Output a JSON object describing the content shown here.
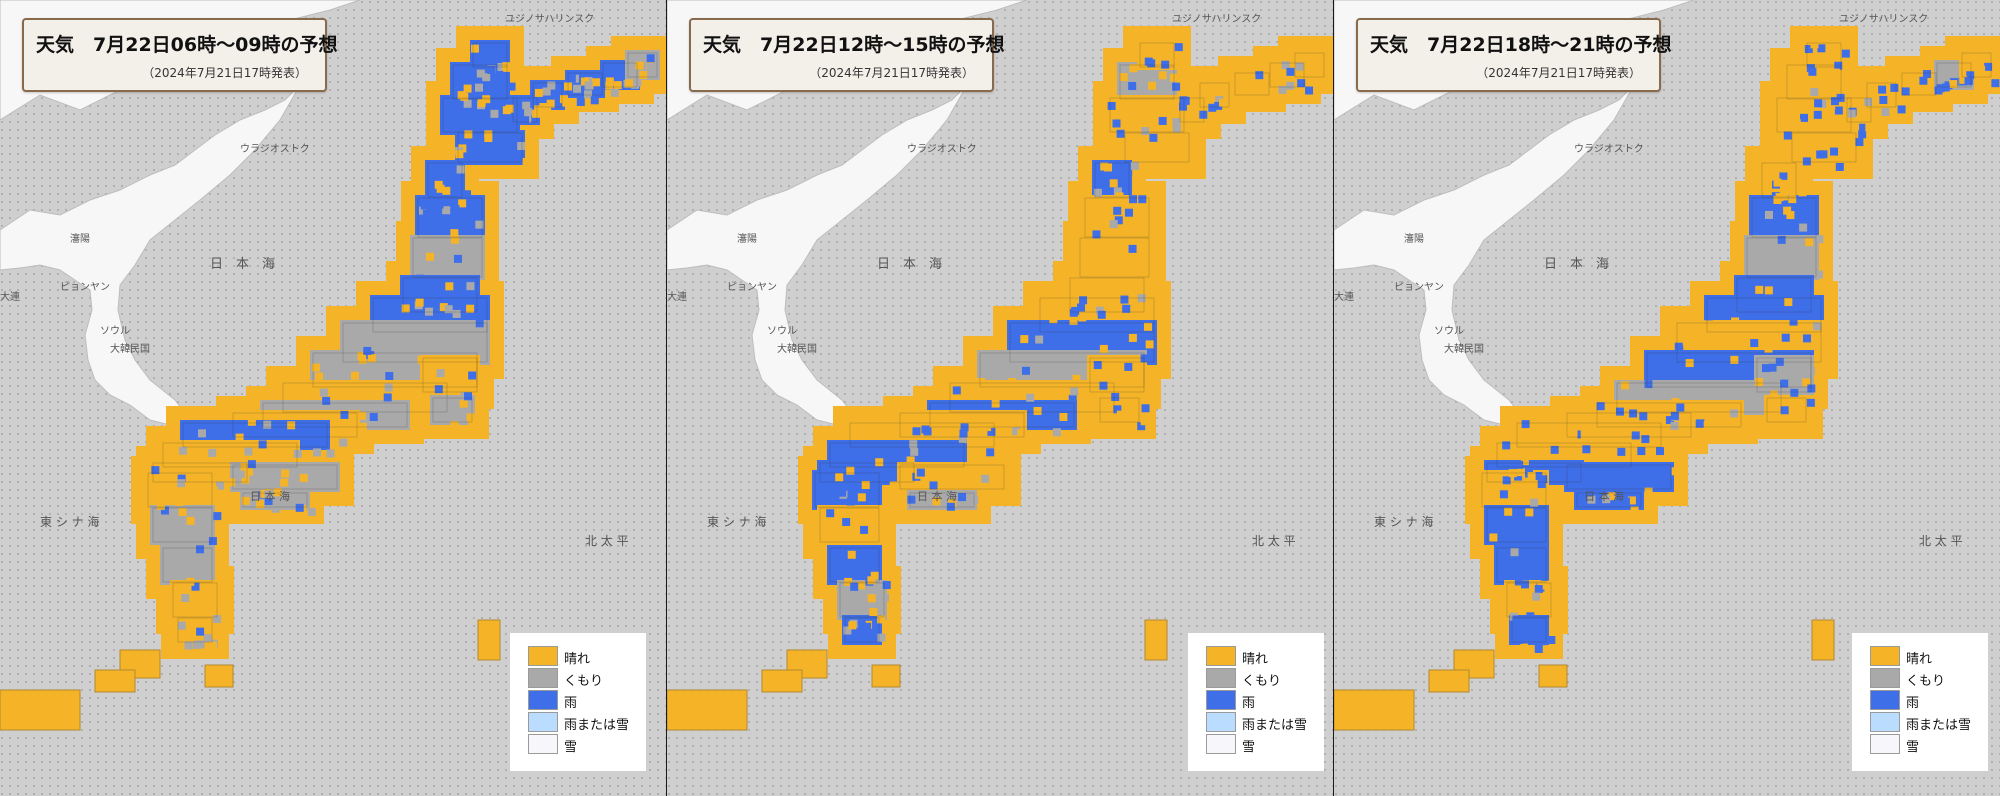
{
  "panels": [
    {
      "title": "天気　7月22日06時～09時の予想",
      "subtitle": "（2024年7月21日17時発表）"
    },
    {
      "title": "天気　7月22日12時～15時の予想",
      "subtitle": "（2024年7月21日17時発表）"
    },
    {
      "title": "天気　7月22日18時～21時の予想",
      "subtitle": "（2024年7月21日17時発表）"
    }
  ],
  "legend": [
    {
      "label": "晴れ",
      "color": "#f5b428"
    },
    {
      "label": "くもり",
      "color": "#a9a9a9"
    },
    {
      "label": "雨",
      "color": "#3f6fe8"
    },
    {
      "label": "雨または雪",
      "color": "#b9dcff"
    },
    {
      "label": "雪",
      "color": "#f6f6fb"
    }
  ],
  "map_labels": {
    "sea_japan": "日　本　海",
    "east_china_sea": "東 シ ナ 海",
    "pacific": "北 太 平",
    "japan_sea_south": "日 本 海",
    "korea": "大韓民国",
    "seoul": "ソウル",
    "pyongyang": "ピョンヤン",
    "vladivostok": "ウラジオストク",
    "sakhalin": "ユジノサハリンスク",
    "shenyang": "瀋陽",
    "dalian": "大連"
  },
  "colors": {
    "sea": "#cfcfcf",
    "land": "#f7f7f7",
    "sunny": "#f5b428",
    "cloudy": "#a9a9a9",
    "rain": "#3f6fe8"
  }
}
